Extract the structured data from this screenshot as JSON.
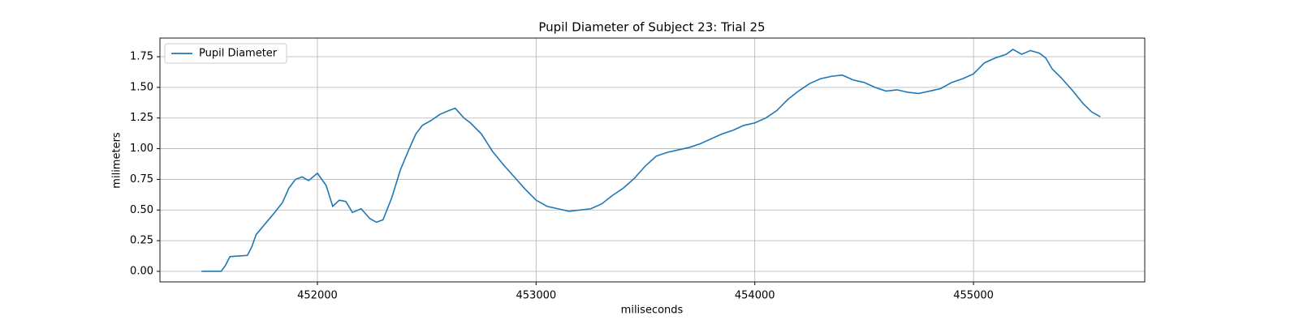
{
  "chart_data": {
    "type": "line",
    "title": "Pupil Diameter of Subject 23: Trial 25",
    "xlabel": "miliseconds",
    "ylabel": "milimeters",
    "legend": "upper left",
    "grid": true,
    "x": [
      451470,
      451560,
      451580,
      451600,
      451680,
      451700,
      451720,
      451800,
      451840,
      451870,
      451900,
      451930,
      451960,
      452000,
      452040,
      452070,
      452100,
      452130,
      452160,
      452200,
      452240,
      452270,
      452300,
      452340,
      452380,
      452420,
      452450,
      452480,
      452520,
      452560,
      452600,
      452630,
      452670,
      452700,
      452750,
      452800,
      452850,
      452900,
      452950,
      453000,
      453050,
      453100,
      453150,
      453200,
      453250,
      453300,
      453350,
      453400,
      453450,
      453500,
      453550,
      453600,
      453650,
      453700,
      453750,
      453800,
      453850,
      453900,
      453950,
      454000,
      454050,
      454100,
      454150,
      454200,
      454250,
      454300,
      454350,
      454400,
      454450,
      454500,
      454550,
      454600,
      454650,
      454700,
      454750,
      454800,
      454850,
      454900,
      454950,
      455000,
      455050,
      455100,
      455150,
      455180,
      455220,
      455260,
      455300,
      455330,
      455360,
      455400,
      455450,
      455500,
      455540,
      455580
    ],
    "series": [
      {
        "name": "Pupil Diameter",
        "color": "#1f77b4",
        "values": [
          0,
          0,
          0.05,
          0.12,
          0.13,
          0.2,
          0.3,
          0.47,
          0.56,
          0.68,
          0.75,
          0.77,
          0.74,
          0.8,
          0.7,
          0.53,
          0.58,
          0.57,
          0.48,
          0.51,
          0.43,
          0.4,
          0.42,
          0.6,
          0.83,
          1.0,
          1.12,
          1.19,
          1.23,
          1.28,
          1.31,
          1.33,
          1.25,
          1.21,
          1.12,
          0.98,
          0.87,
          0.77,
          0.67,
          0.58,
          0.53,
          0.51,
          0.49,
          0.5,
          0.51,
          0.55,
          0.62,
          0.68,
          0.76,
          0.86,
          0.94,
          0.97,
          0.99,
          1.01,
          1.04,
          1.08,
          1.12,
          1.15,
          1.19,
          1.21,
          1.25,
          1.31,
          1.4,
          1.47,
          1.53,
          1.57,
          1.59,
          1.6,
          1.56,
          1.54,
          1.5,
          1.47,
          1.48,
          1.46,
          1.45,
          1.47,
          1.49,
          1.54,
          1.57,
          1.61,
          1.7,
          1.74,
          1.77,
          1.81,
          1.77,
          1.8,
          1.78,
          1.74,
          1.65,
          1.58,
          1.48,
          1.37,
          1.3,
          1.26
        ]
      }
    ],
    "xlim": [
      451280,
      455783
    ],
    "xticks": [
      452000,
      453000,
      454000,
      455000
    ],
    "ylim": [
      -0.086,
      1.902
    ],
    "yticks": [
      {
        "value": 0,
        "label": "0.00"
      },
      {
        "value": 0.25,
        "label": "0.25"
      },
      {
        "value": 0.5,
        "label": "0.50"
      },
      {
        "value": 0.75,
        "label": "0.75"
      },
      {
        "value": 1,
        "label": "1.00"
      },
      {
        "value": 1.25,
        "label": "1.25"
      },
      {
        "value": 1.5,
        "label": "1.50"
      },
      {
        "value": 1.75,
        "label": "1.75"
      }
    ]
  }
}
